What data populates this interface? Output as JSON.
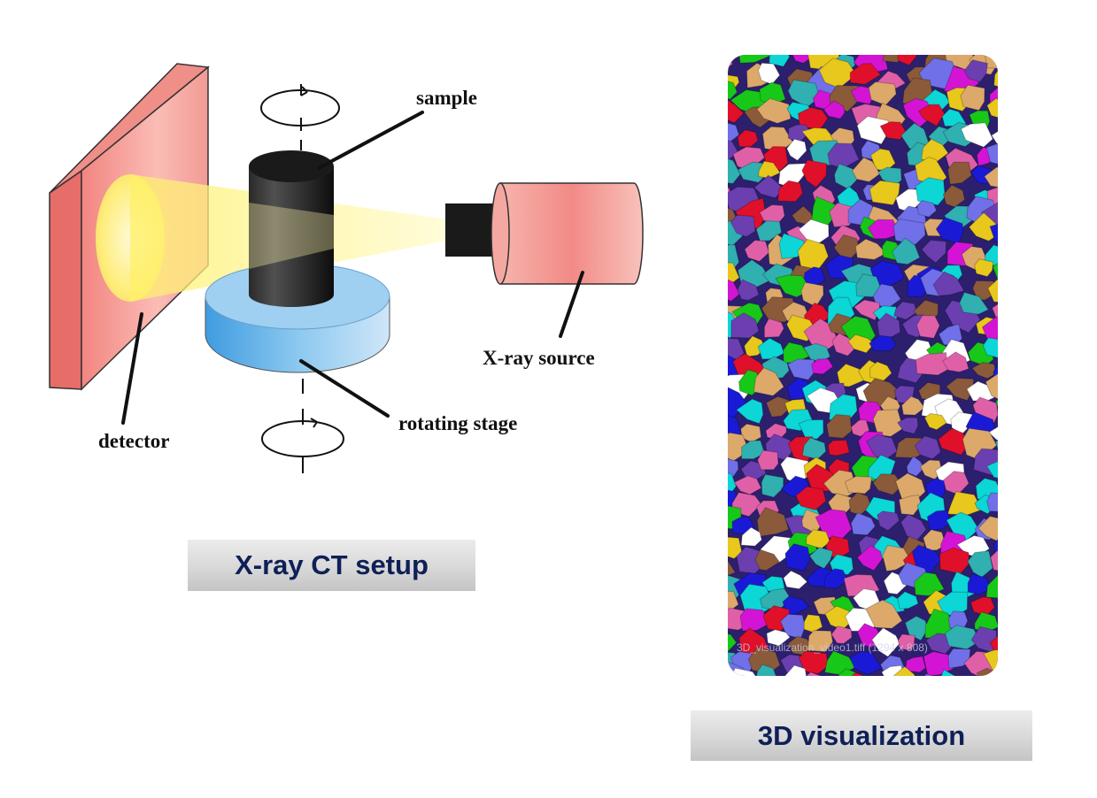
{
  "setup": {
    "labels": {
      "sample": "sample",
      "xray_source": "X-ray source",
      "rotating_stage": "rotating stage",
      "detector": "detector"
    },
    "caption": "X-ray CT setup"
  },
  "visualization": {
    "caption": "3D visualization",
    "watermark": "3D_visualization_video1.tiff (1294 x 808)",
    "particle_colors": [
      "#e0102a",
      "#1a1ad6",
      "#0cd6d6",
      "#d414d4",
      "#18c818",
      "#e8c81c",
      "#6c3fb0",
      "#dca96a",
      "#8a5a3a",
      "#e060a8",
      "#7070e8",
      "#30b0b0",
      "#ffffff"
    ]
  },
  "colors": {
    "detector_face": "#f39a96",
    "beam": "#fff27a",
    "stage": "#6cb4e8",
    "source_body": "#f5a09a",
    "caption_text": "#0f2057"
  }
}
